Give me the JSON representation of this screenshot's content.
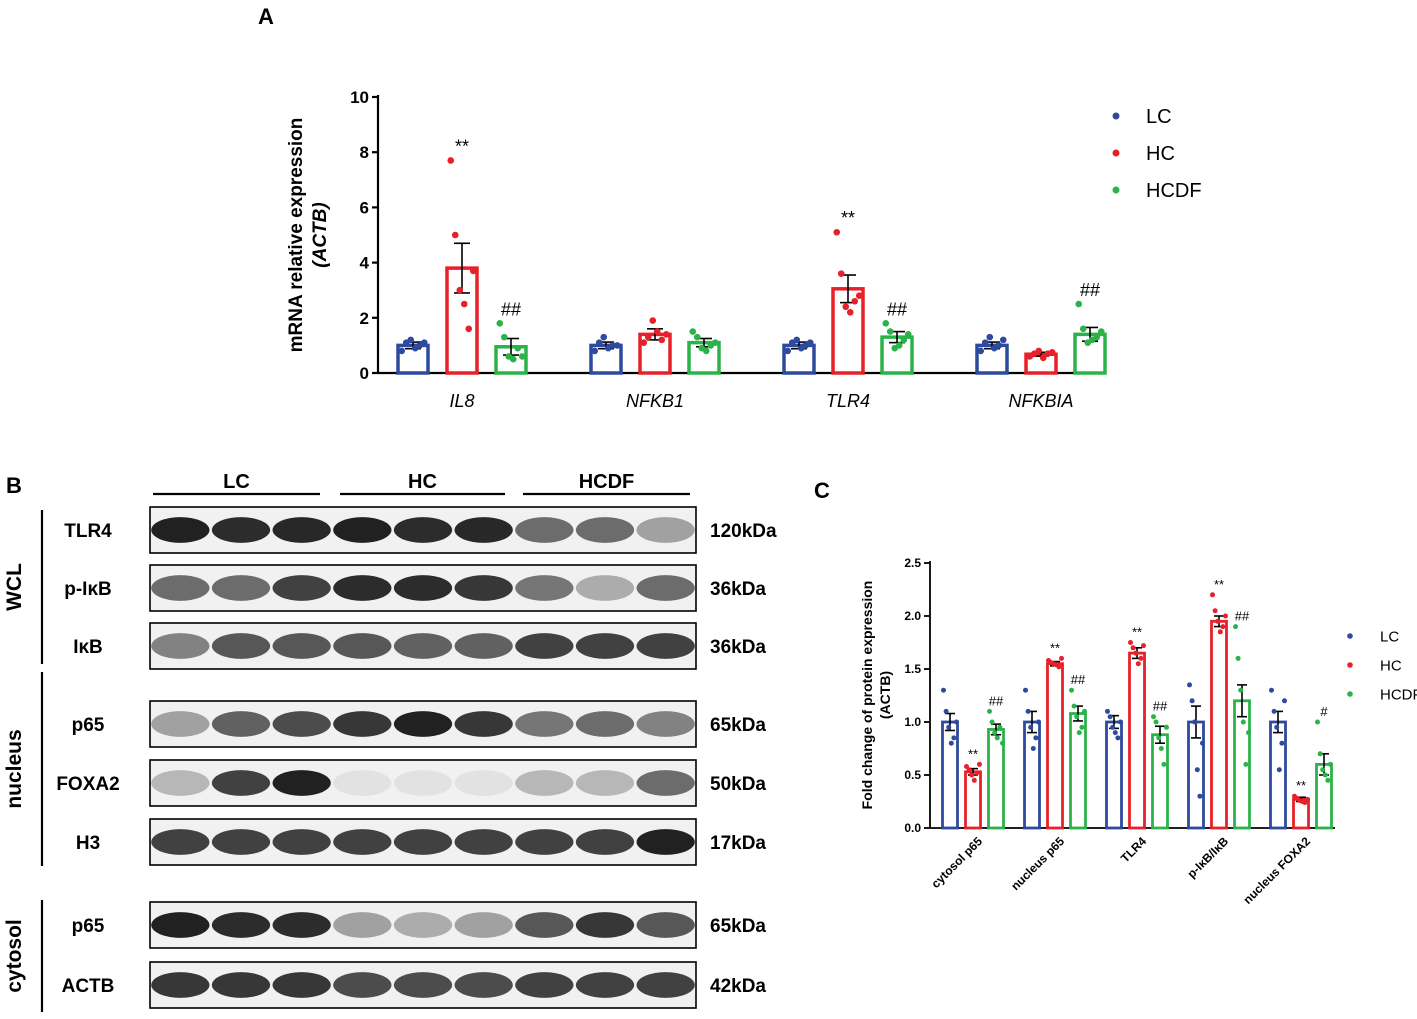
{
  "colors": {
    "LC": "#2e4a9e",
    "HC": "#e8202a",
    "HCDF": "#2bb34a"
  },
  "panel_a": {
    "label": "A",
    "legend": [
      "LC",
      "HC",
      "HCDF"
    ],
    "ylabel_main": "mRNA relative expression",
    "ylabel_sub": "(ACTB)",
    "yticks": [
      "0",
      "2",
      "4",
      "6",
      "8",
      "10"
    ]
  },
  "panel_b": {
    "label": "B",
    "groups": [
      "LC",
      "HC",
      "HCDF"
    ],
    "sections": [
      "WCL",
      "nucleus",
      "cytosol"
    ],
    "bands": [
      {
        "name": "TLR4",
        "mw": "120kDa",
        "section": "WCL"
      },
      {
        "name": "p-IκB",
        "mw": "36kDa",
        "section": "WCL"
      },
      {
        "name": "IκB",
        "mw": "36kDa",
        "section": "WCL"
      },
      {
        "name": "p65",
        "mw": "65kDa",
        "section": "nucleus"
      },
      {
        "name": "FOXA2",
        "mw": "50kDa",
        "section": "nucleus"
      },
      {
        "name": "H3",
        "mw": "17kDa",
        "section": "nucleus"
      },
      {
        "name": "p65",
        "mw": "65kDa",
        "section": "cytosol"
      },
      {
        "name": "ACTB",
        "mw": "42kDa",
        "section": "cytosol"
      }
    ]
  },
  "panel_c": {
    "label": "C",
    "legend": [
      "LC",
      "HC",
      "HCDF"
    ],
    "ylabel_main": "Fold change of protein expression",
    "ylabel_sub": "(ACTB)",
    "yticks": [
      "0.0",
      "0.5",
      "1.0",
      "1.5",
      "2.0",
      "2.5"
    ]
  },
  "chart_data": [
    {
      "type": "bar",
      "categories": [
        "IL8",
        "NFKB1",
        "TLR4",
        "NFKBIA"
      ],
      "ylim": [
        0,
        10
      ],
      "xlabel": "",
      "ylabel": "mRNA relative expression (ACTB)",
      "legend_position": "top-right",
      "series": [
        {
          "name": "LC",
          "values": [
            1.0,
            1.0,
            1.0,
            1.0
          ],
          "errors": [
            0.12,
            0.12,
            0.12,
            0.12
          ],
          "points": [
            [
              0.8,
              1.1,
              1.2,
              0.9,
              1.0,
              1.1
            ],
            [
              0.8,
              1.1,
              1.3,
              0.9,
              1.0,
              1.0
            ],
            [
              0.8,
              1.1,
              1.2,
              0.9,
              1.0,
              1.1
            ],
            [
              0.8,
              1.1,
              1.3,
              0.9,
              1.0,
              1.2
            ]
          ]
        },
        {
          "name": "HC",
          "values": [
            3.8,
            1.4,
            3.05,
            0.68
          ],
          "errors": [
            0.9,
            0.2,
            0.5,
            0.07
          ],
          "points": [
            [
              7.7,
              5.0,
              3.0,
              2.5,
              1.6,
              3.7
            ],
            [
              1.1,
              1.3,
              1.9,
              1.5,
              1.2,
              1.4
            ],
            [
              5.1,
              3.6,
              2.4,
              2.2,
              2.6,
              2.8
            ],
            [
              0.6,
              0.7,
              0.8,
              0.55,
              0.7,
              0.75
            ]
          ]
        },
        {
          "name": "HCDF",
          "values": [
            0.95,
            1.1,
            1.3,
            1.4
          ],
          "errors": [
            0.3,
            0.15,
            0.2,
            0.25
          ],
          "points": [
            [
              1.8,
              1.3,
              0.6,
              0.5,
              0.9,
              0.6
            ],
            [
              1.5,
              1.3,
              0.9,
              0.8,
              1.0,
              1.1
            ],
            [
              1.8,
              1.5,
              0.9,
              1.0,
              1.2,
              1.4
            ],
            [
              2.5,
              1.6,
              1.1,
              1.2,
              1.3,
              1.5
            ]
          ]
        }
      ],
      "annotations": [
        {
          "category": "IL8",
          "series": "HC",
          "text": "**"
        },
        {
          "category": "IL8",
          "series": "HCDF",
          "text": "##"
        },
        {
          "category": "TLR4",
          "series": "HC",
          "text": "**"
        },
        {
          "category": "TLR4",
          "series": "HCDF",
          "text": "##"
        },
        {
          "category": "NFKBIA",
          "series": "HCDF",
          "text": "##"
        }
      ]
    },
    {
      "type": "bar",
      "categories": [
        "cytosol p65",
        "nucleus p65",
        "TLR4",
        "p-IκB/IκB",
        "nucleus FOXA2"
      ],
      "ylim": [
        0,
        2.5
      ],
      "xlabel": "",
      "ylabel": "Fold change of protein expression (ACTB)",
      "legend_position": "top-right",
      "series": [
        {
          "name": "LC",
          "values": [
            1.0,
            1.0,
            1.0,
            1.0,
            1.0
          ],
          "errors": [
            0.08,
            0.1,
            0.06,
            0.15,
            0.1
          ],
          "points": [
            [
              1.3,
              1.1,
              0.95,
              0.8,
              0.85,
              1.0
            ],
            [
              1.3,
              1.1,
              0.95,
              0.75,
              0.85,
              1.0
            ],
            [
              1.1,
              1.05,
              0.95,
              0.9,
              0.85,
              1.0
            ],
            [
              1.35,
              1.2,
              1.0,
              0.55,
              0.3,
              0.8
            ],
            [
              1.3,
              1.1,
              0.95,
              0.55,
              0.8,
              1.2
            ]
          ]
        },
        {
          "name": "HC",
          "values": [
            0.53,
            1.55,
            1.65,
            1.95,
            0.27
          ],
          "errors": [
            0.03,
            0.02,
            0.05,
            0.05,
            0.02
          ],
          "points": [
            [
              0.58,
              0.55,
              0.5,
              0.45,
              0.52,
              0.6
            ],
            [
              1.58,
              1.56,
              1.55,
              1.54,
              1.52,
              1.6
            ],
            [
              1.75,
              1.7,
              1.65,
              1.55,
              1.6,
              1.72
            ],
            [
              2.2,
              2.05,
              1.95,
              1.85,
              1.9,
              2.0
            ],
            [
              0.3,
              0.28,
              0.26,
              0.25,
              0.24,
              0.27
            ]
          ]
        },
        {
          "name": "HCDF",
          "values": [
            0.93,
            1.08,
            0.88,
            1.2,
            0.6
          ],
          "errors": [
            0.05,
            0.07,
            0.08,
            0.15,
            0.1
          ],
          "points": [
            [
              1.1,
              1.0,
              0.9,
              0.85,
              0.95,
              0.8
            ],
            [
              1.3,
              1.15,
              1.05,
              0.9,
              0.95,
              1.1
            ],
            [
              1.05,
              1.0,
              0.85,
              0.75,
              0.6,
              0.95
            ],
            [
              1.9,
              1.6,
              1.3,
              1.0,
              0.6,
              0.9
            ],
            [
              1.0,
              0.7,
              0.55,
              0.5,
              0.45,
              0.6
            ]
          ]
        }
      ],
      "annotations": [
        {
          "category": "cytosol p65",
          "series": "HC",
          "text": "**"
        },
        {
          "category": "cytosol p65",
          "series": "HCDF",
          "text": "##"
        },
        {
          "category": "nucleus p65",
          "series": "HC",
          "text": "**"
        },
        {
          "category": "nucleus p65",
          "series": "HCDF",
          "text": "##"
        },
        {
          "category": "TLR4",
          "series": "HC",
          "text": "**"
        },
        {
          "category": "TLR4",
          "series": "HCDF",
          "text": "##"
        },
        {
          "category": "p-IκB/IκB",
          "series": "HC",
          "text": "**"
        },
        {
          "category": "p-IκB/IκB",
          "series": "HCDF",
          "text": "##"
        },
        {
          "category": "nucleus FOXA2",
          "series": "HC",
          "text": "**"
        },
        {
          "category": "nucleus FOXA2",
          "series": "HCDF",
          "text": "#"
        }
      ]
    }
  ]
}
